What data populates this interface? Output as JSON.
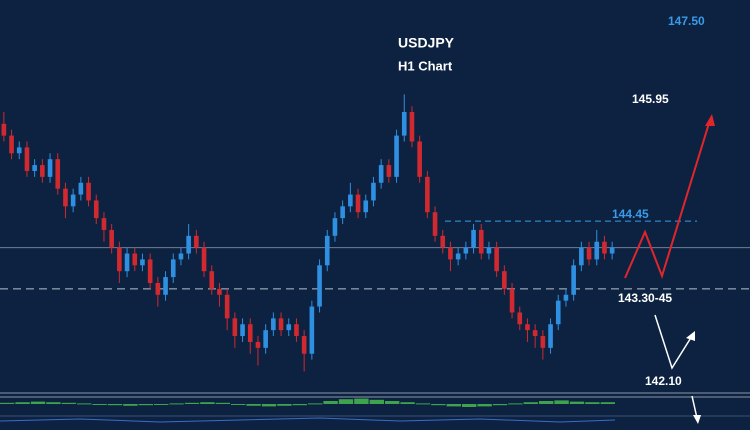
{
  "chart_data": {
    "type": "candlestick",
    "title": "USDJPY",
    "subtitle": "H1 Chart",
    "ylim": [
      141.5,
      148.2
    ],
    "up_color": "#2f8fe0",
    "down_color": "#d02a30",
    "candles": [
      [
        146.1,
        146.3,
        145.8,
        145.9
      ],
      [
        145.9,
        146.0,
        145.5,
        145.6
      ],
      [
        145.6,
        145.8,
        145.5,
        145.7
      ],
      [
        145.7,
        145.8,
        145.2,
        145.3
      ],
      [
        145.3,
        145.5,
        145.2,
        145.4
      ],
      [
        145.4,
        145.5,
        145.1,
        145.2
      ],
      [
        145.2,
        145.6,
        145.1,
        145.5
      ],
      [
        145.5,
        145.6,
        144.9,
        145.0
      ],
      [
        145.0,
        145.1,
        144.5,
        144.7
      ],
      [
        144.7,
        145.0,
        144.6,
        144.9
      ],
      [
        144.9,
        145.2,
        144.8,
        145.1
      ],
      [
        145.1,
        145.2,
        144.7,
        144.8
      ],
      [
        144.8,
        144.9,
        144.4,
        144.5
      ],
      [
        144.5,
        144.6,
        144.1,
        144.3
      ],
      [
        144.3,
        144.4,
        143.9,
        144.0
      ],
      [
        144.0,
        144.1,
        143.4,
        143.6
      ],
      [
        143.6,
        144.0,
        143.5,
        143.9
      ],
      [
        143.9,
        144.0,
        143.6,
        143.7
      ],
      [
        143.7,
        143.9,
        143.6,
        143.8
      ],
      [
        143.8,
        143.9,
        143.3,
        143.4
      ],
      [
        143.4,
        143.5,
        143.0,
        143.2
      ],
      [
        143.2,
        143.6,
        143.1,
        143.5
      ],
      [
        143.5,
        143.9,
        143.4,
        143.8
      ],
      [
        143.8,
        144.0,
        143.7,
        143.9
      ],
      [
        143.9,
        144.4,
        143.8,
        144.2
      ],
      [
        144.2,
        144.3,
        143.9,
        144.0
      ],
      [
        144.0,
        144.1,
        143.5,
        143.6
      ],
      [
        143.6,
        143.7,
        143.2,
        143.3
      ],
      [
        143.3,
        143.4,
        143.0,
        143.2
      ],
      [
        143.2,
        143.3,
        142.6,
        142.8
      ],
      [
        142.8,
        142.9,
        142.3,
        142.5
      ],
      [
        142.5,
        142.8,
        142.4,
        142.7
      ],
      [
        142.7,
        142.8,
        142.2,
        142.4
      ],
      [
        142.4,
        142.5,
        142.0,
        142.3
      ],
      [
        142.3,
        142.7,
        142.2,
        142.6
      ],
      [
        142.6,
        142.9,
        142.5,
        142.8
      ],
      [
        142.8,
        142.9,
        142.5,
        142.6
      ],
      [
        142.6,
        142.8,
        142.5,
        142.7
      ],
      [
        142.7,
        142.8,
        142.4,
        142.5
      ],
      [
        142.5,
        142.6,
        141.9,
        142.2
      ],
      [
        142.2,
        143.1,
        142.1,
        143.0
      ],
      [
        143.0,
        143.8,
        142.9,
        143.7
      ],
      [
        143.7,
        144.3,
        143.6,
        144.2
      ],
      [
        144.2,
        144.6,
        144.1,
        144.5
      ],
      [
        144.5,
        144.8,
        144.4,
        144.7
      ],
      [
        144.7,
        145.1,
        144.6,
        144.9
      ],
      [
        144.9,
        145.0,
        144.5,
        144.6
      ],
      [
        144.6,
        144.9,
        144.5,
        144.8
      ],
      [
        144.8,
        145.2,
        144.7,
        145.1
      ],
      [
        145.1,
        145.5,
        145.0,
        145.4
      ],
      [
        145.4,
        145.5,
        145.1,
        145.2
      ],
      [
        145.2,
        146.0,
        145.1,
        145.9
      ],
      [
        145.9,
        146.6,
        145.8,
        146.3
      ],
      [
        146.3,
        146.4,
        145.7,
        145.8
      ],
      [
        145.8,
        145.9,
        145.1,
        145.2
      ],
      [
        145.2,
        145.3,
        144.5,
        144.6
      ],
      [
        144.6,
        144.7,
        144.1,
        144.2
      ],
      [
        144.2,
        144.3,
        143.9,
        144.0
      ],
      [
        144.0,
        144.1,
        143.6,
        143.8
      ],
      [
        143.8,
        144.0,
        143.7,
        143.9
      ],
      [
        143.9,
        144.1,
        143.8,
        144.0
      ],
      [
        144.0,
        144.4,
        143.9,
        144.3
      ],
      [
        144.3,
        144.4,
        143.8,
        143.9
      ],
      [
        143.9,
        144.1,
        143.8,
        144.0
      ],
      [
        144.0,
        144.1,
        143.5,
        143.6
      ],
      [
        143.6,
        143.7,
        143.2,
        143.3
      ],
      [
        143.3,
        143.4,
        142.8,
        142.9
      ],
      [
        142.9,
        143.0,
        142.6,
        142.7
      ],
      [
        142.7,
        142.8,
        142.4,
        142.6
      ],
      [
        142.6,
        142.7,
        142.3,
        142.5
      ],
      [
        142.5,
        142.6,
        142.1,
        142.3
      ],
      [
        142.3,
        142.8,
        142.2,
        142.7
      ],
      [
        142.7,
        143.2,
        142.6,
        143.1
      ],
      [
        143.1,
        143.3,
        143.0,
        143.2
      ],
      [
        143.2,
        143.8,
        143.1,
        143.7
      ],
      [
        143.7,
        144.1,
        143.6,
        144.0
      ],
      [
        144.0,
        144.1,
        143.7,
        143.8
      ],
      [
        143.8,
        144.3,
        143.7,
        144.1
      ],
      [
        144.1,
        144.2,
        143.8,
        143.9
      ],
      [
        143.9,
        144.1,
        143.8,
        144.0
      ]
    ],
    "oscillator": {
      "color": "#3fa34d",
      "ylim": [
        -1,
        1
      ],
      "values": [
        0.2,
        0.3,
        0.4,
        0.3,
        0.2,
        0.1,
        -0.1,
        -0.2,
        -0.3,
        -0.2,
        -0.1,
        0.1,
        0.2,
        0.3,
        0.2,
        -0.1,
        -0.3,
        -0.4,
        -0.3,
        -0.2,
        0.1,
        0.5,
        0.8,
        0.9,
        0.7,
        0.5,
        0.3,
        0.1,
        -0.2,
        -0.4,
        -0.5,
        -0.4,
        -0.2,
        0.1,
        0.3,
        0.5,
        0.6,
        0.4,
        0.3,
        0.3
      ]
    },
    "annotations": [
      {
        "value": 147.5,
        "label": "147.50"
      },
      {
        "value": 145.95,
        "label": "145.95"
      },
      {
        "value": 144.45,
        "label": "144.45"
      },
      {
        "value": 143.3,
        "label": "143.30-45"
      },
      {
        "value": 142.1,
        "label": "142.10"
      }
    ]
  }
}
